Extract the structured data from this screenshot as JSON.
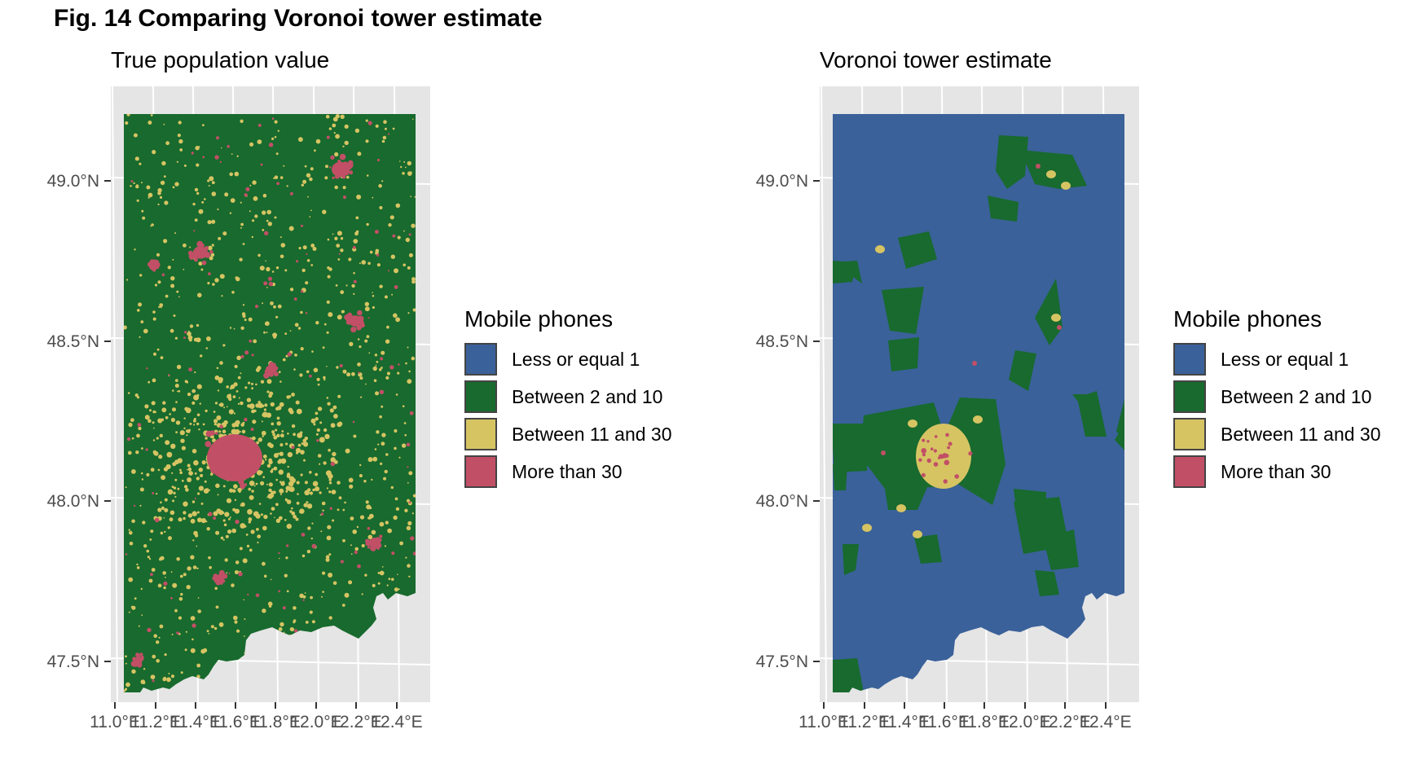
{
  "figure_title": "Fig. 14 Comparing Voronoi tower estimate",
  "colors": {
    "panel_bg": "#e5e5e5",
    "grid": "#ffffff",
    "less_or_equal_1": "#3a6199",
    "between_2_and_10": "#186a2e",
    "between_11_and_30": "#d6c463",
    "more_than_30": "#c14f66"
  },
  "panels": [
    {
      "title": "True population value",
      "background_class": "between_2_and_10"
    },
    {
      "title": "Voronoi tower estimate",
      "background_class": "less_or_equal_1"
    }
  ],
  "axes": {
    "y_ticks": [
      "49.0°N",
      "48.5°N",
      "48.0°N",
      "47.5°N"
    ],
    "x_ticks": [
      "11.0°E",
      "11.2°E",
      "11.4°E",
      "11.6°E",
      "11.8°E",
      "12.0°E",
      "12.2°E",
      "12.4°E"
    ]
  },
  "legend": {
    "title": "Mobile phones",
    "items": [
      {
        "label": "Less or equal 1",
        "icon": "swatch-less-or-equal-1"
      },
      {
        "label": "Between 2 and 10",
        "icon": "swatch-between-2-and-10"
      },
      {
        "label": "Between 11 and 30",
        "icon": "swatch-between-11-and-30"
      },
      {
        "label": "More than 30",
        "icon": "swatch-more-than-30"
      }
    ]
  }
}
